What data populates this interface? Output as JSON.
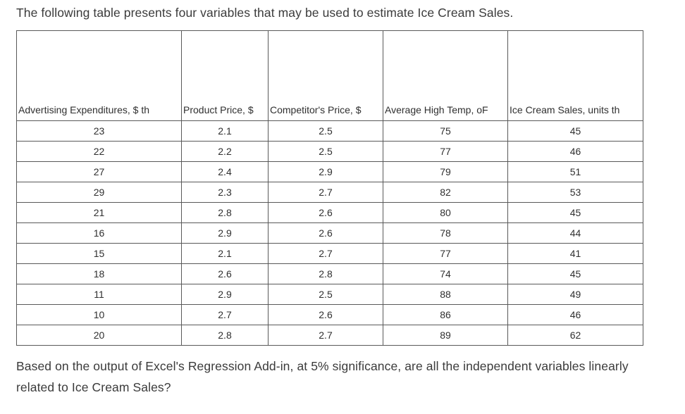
{
  "intro": "The following table presents four variables that may be used to estimate Ice Cream Sales.",
  "table": {
    "headers": [
      "Advertising Expenditures, $ th",
      "Product Price, $",
      "Competitor's Price, $",
      "Average High Temp, oF",
      "Ice Cream Sales, units th"
    ],
    "rows": [
      [
        "23",
        "2.1",
        "2.5",
        "75",
        "45"
      ],
      [
        "22",
        "2.2",
        "2.5",
        "77",
        "46"
      ],
      [
        "27",
        "2.4",
        "2.9",
        "79",
        "51"
      ],
      [
        "29",
        "2.3",
        "2.7",
        "82",
        "53"
      ],
      [
        "21",
        "2.8",
        "2.6",
        "80",
        "45"
      ],
      [
        "16",
        "2.9",
        "2.6",
        "78",
        "44"
      ],
      [
        "15",
        "2.1",
        "2.7",
        "77",
        "41"
      ],
      [
        "18",
        "2.6",
        "2.8",
        "74",
        "45"
      ],
      [
        "11",
        "2.9",
        "2.5",
        "88",
        "49"
      ],
      [
        "10",
        "2.7",
        "2.6",
        "86",
        "46"
      ],
      [
        "20",
        "2.8",
        "2.7",
        "89",
        "62"
      ]
    ]
  },
  "question": "Based on the output of Excel's Regression Add-in, at 5% significance, are all the independent variables linearly related to Ice Cream Sales?"
}
